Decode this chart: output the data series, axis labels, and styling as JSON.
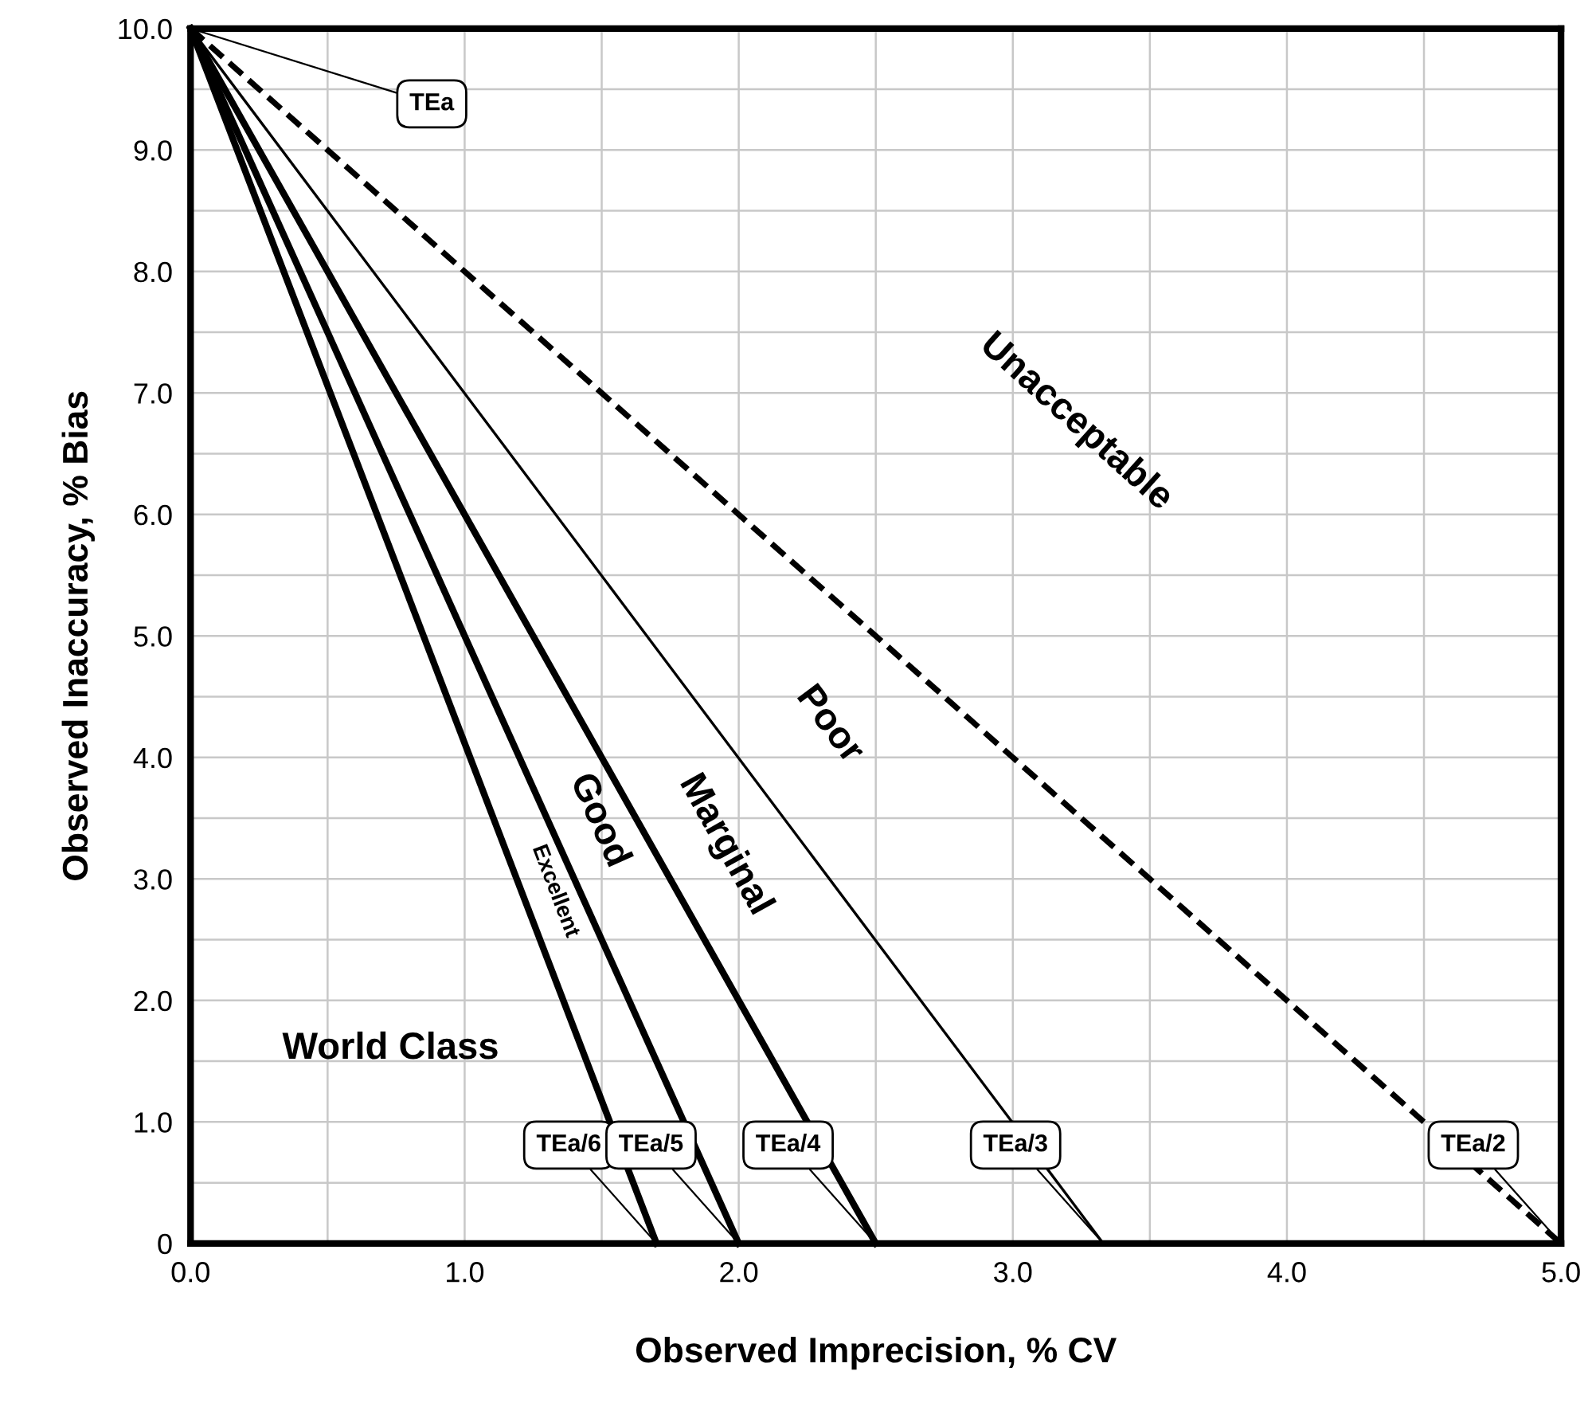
{
  "chart_data": {
    "type": "line",
    "xlabel": "Observed Imprecision, % CV",
    "ylabel": "Observed Inaccuracy, % Bias",
    "xlim": [
      0,
      5
    ],
    "ylim": [
      0,
      10
    ],
    "xticks": [
      {
        "value": 0,
        "label": "0.0"
      },
      {
        "value": 0.5,
        "label": null
      },
      {
        "value": 1,
        "label": "1.0"
      },
      {
        "value": 1.5,
        "label": null
      },
      {
        "value": 2,
        "label": "2.0"
      },
      {
        "value": 2.5,
        "label": null
      },
      {
        "value": 3,
        "label": "3.0"
      },
      {
        "value": 3.5,
        "label": null
      },
      {
        "value": 4,
        "label": "4.0"
      },
      {
        "value": 4.5,
        "label": null
      },
      {
        "value": 5,
        "label": "5.0"
      }
    ],
    "yticks": [
      0,
      {
        "value": 0.5,
        "label": null
      },
      {
        "value": 1,
        "label": "1.0"
      },
      {
        "value": 1.5,
        "label": null
      },
      {
        "value": 2,
        "label": "2.0"
      },
      {
        "value": 2.5,
        "label": null
      },
      {
        "value": 3,
        "label": "3.0"
      },
      {
        "value": 3.5,
        "label": null
      },
      {
        "value": 4,
        "label": "4.0"
      },
      {
        "value": 4.5,
        "label": null
      },
      {
        "value": 5,
        "label": "5.0"
      },
      {
        "value": 5.5,
        "label": null
      },
      {
        "value": 6,
        "label": "6.0"
      },
      {
        "value": 6.5,
        "label": null
      },
      {
        "value": 7,
        "label": "7.0"
      },
      {
        "value": 7.5,
        "label": null
      },
      {
        "value": 8,
        "label": "8.0"
      },
      {
        "value": 8.5,
        "label": null
      },
      {
        "value": 9,
        "label": "9.0"
      },
      {
        "value": 9.5,
        "label": null
      },
      {
        "value": 10,
        "label": "10.0"
      }
    ],
    "grid": true,
    "marker": "none",
    "series": [
      {
        "color": "#000000",
        "x": [
          0,
          1.7
        ],
        "values": [
          10,
          0
        ],
        "line_style": "solid"
      },
      {
        "color": "#000000",
        "x": [
          0,
          2.0
        ],
        "values": [
          10,
          0
        ],
        "line_style": "solid"
      },
      {
        "color": "#000000",
        "x": [
          0,
          2.5
        ],
        "values": [
          10,
          0
        ],
        "line_style": "solid"
      },
      {
        "color": "#000000",
        "x": [
          0,
          3.33
        ],
        "values": [
          10,
          0
        ],
        "line_style": "solid"
      },
      {
        "color": "#000000",
        "x": [
          0,
          5.0
        ],
        "values": [
          10,
          0
        ],
        "line_style": "dashed"
      }
    ],
    "annotations": [
      {
        "text": "TEa",
        "x": 0,
        "y": 10
      },
      {
        "text": "TEa/6",
        "x": 1.7,
        "y": 0
      },
      {
        "text": "TEa/5",
        "x": 2.0,
        "y": 0
      },
      {
        "text": "TEa/4",
        "x": 2.5,
        "y": 0
      },
      {
        "text": "TEa/3",
        "x": 3.33,
        "y": 0
      },
      {
        "text": "TEa/2",
        "x": 5.0,
        "y": 0
      },
      "World Class",
      "Excellent",
      "Good",
      "Marginal",
      "Poor",
      "Unacceptable"
    ]
  }
}
